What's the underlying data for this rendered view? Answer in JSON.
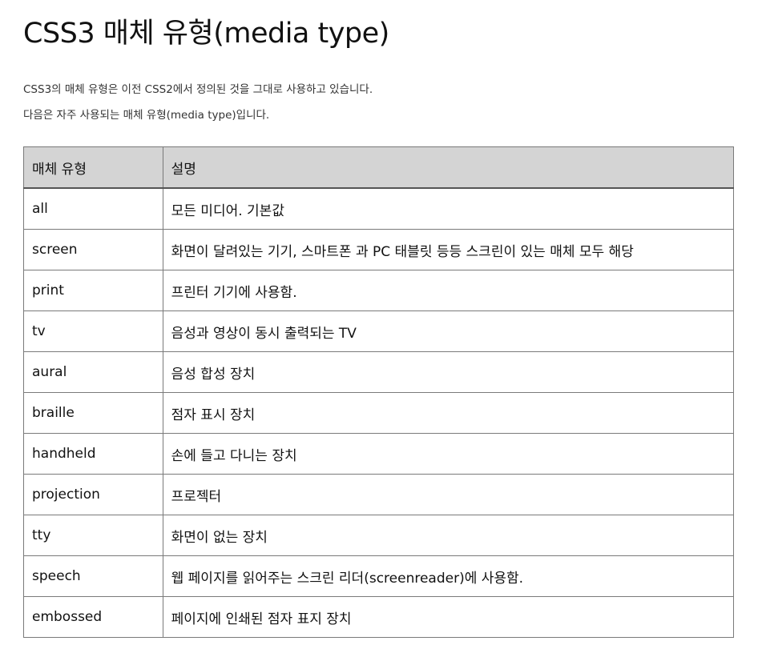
{
  "title": "CSS3 매체 유형(media type)",
  "intro": [
    "CSS3의 매체 유형은 이전 CSS2에서 정의된 것을 그대로 사용하고 있습니다.",
    "다음은 자주 사용되는 매체 유형(media type)입니다."
  ],
  "table": {
    "headers": [
      "매체 유형",
      "설명"
    ],
    "rows": [
      [
        "all",
        "모든 미디어. 기본값"
      ],
      [
        "screen",
        "화면이 달려있는 기기, 스마트폰 과 PC 태블릿 등등 스크린이 있는 매체 모두 해당"
      ],
      [
        "print",
        "프린터 기기에 사용함."
      ],
      [
        "tv",
        "음성과 영상이 동시 출력되는 TV"
      ],
      [
        "aural",
        "음성 합성 장치"
      ],
      [
        "braille",
        "점자 표시 장치"
      ],
      [
        "handheld",
        "손에 들고 다니는 장치"
      ],
      [
        "projection",
        "프로젝터"
      ],
      [
        "tty",
        "화면이 없는 장치"
      ],
      [
        "speech",
        "웹 페이지를 읽어주는 스크린 리더(screenreader)에 사용함."
      ],
      [
        "embossed",
        "페이지에 인쇄된 점자 표지 장치"
      ]
    ]
  }
}
